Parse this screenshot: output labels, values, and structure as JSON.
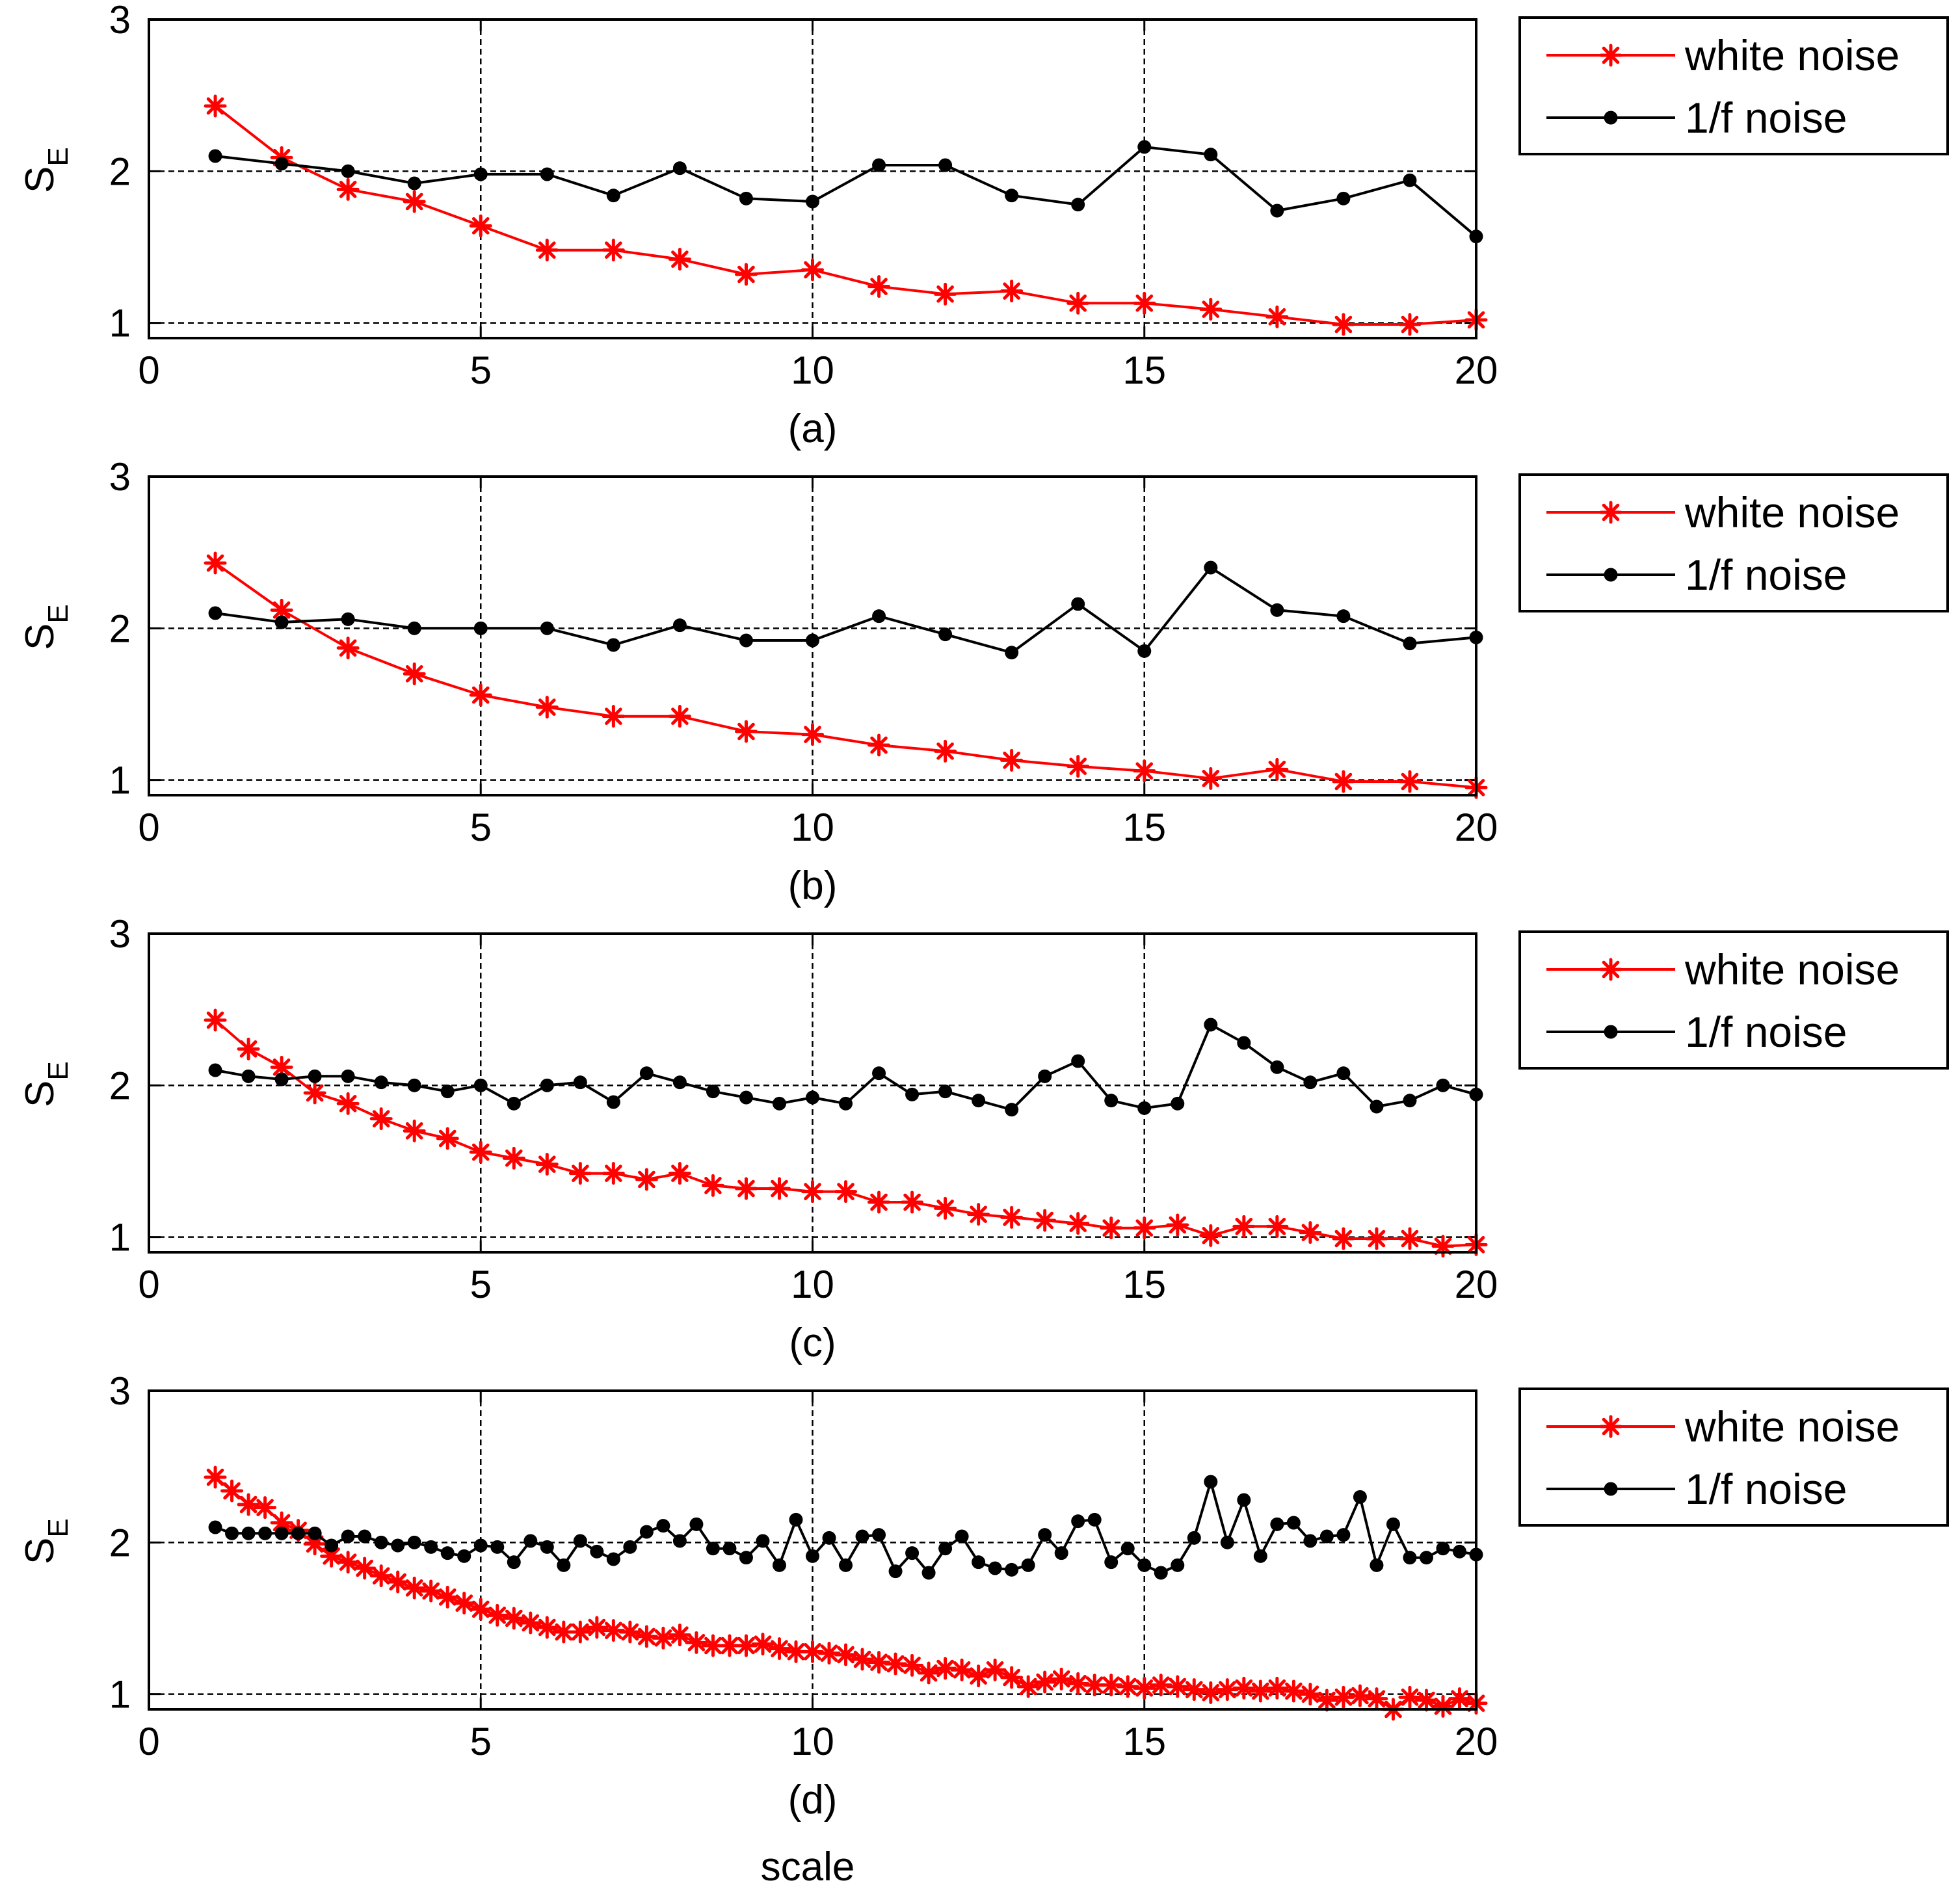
{
  "figure": {
    "xlabel": "scale",
    "ylabel_main": "S",
    "ylabel_sub": "E"
  },
  "chart_data": [
    {
      "type": "line",
      "panel_label": "(a)",
      "xlim": [
        0,
        20
      ],
      "ylim": [
        0.9,
        3
      ],
      "xticks": [
        "0",
        "5",
        "10",
        "15",
        "20"
      ],
      "yticks": [
        "1",
        "2",
        "3"
      ],
      "grid": true,
      "legend_position": "outside-right",
      "series": [
        {
          "name": "white noise",
          "color": "#ff0000",
          "marker": "asterisk",
          "x": [
            1,
            2,
            3,
            4,
            5,
            6,
            7,
            8,
            9,
            10,
            11,
            12,
            13,
            14,
            15,
            16,
            17,
            18,
            19,
            20
          ],
          "y": [
            2.43,
            2.09,
            1.88,
            1.8,
            1.64,
            1.48,
            1.48,
            1.42,
            1.32,
            1.35,
            1.24,
            1.19,
            1.21,
            1.13,
            1.13,
            1.09,
            1.04,
            0.99,
            0.99,
            1.02
          ]
        },
        {
          "name": "1/f noise",
          "color": "#000000",
          "marker": "dot",
          "x": [
            1,
            2,
            3,
            4,
            5,
            6,
            7,
            8,
            9,
            10,
            11,
            12,
            13,
            14,
            15,
            16,
            17,
            18,
            19,
            20
          ],
          "y": [
            2.1,
            2.05,
            2.0,
            1.92,
            1.98,
            1.98,
            1.84,
            2.02,
            1.82,
            1.8,
            2.04,
            2.04,
            1.84,
            1.78,
            2.16,
            2.11,
            1.74,
            1.82,
            1.94,
            1.57
          ]
        }
      ]
    },
    {
      "type": "line",
      "panel_label": "(b)",
      "xlim": [
        0,
        20
      ],
      "ylim": [
        0.9,
        3
      ],
      "xticks": [
        "0",
        "5",
        "10",
        "15",
        "20"
      ],
      "yticks": [
        "1",
        "2",
        "3"
      ],
      "grid": true,
      "legend_position": "outside-right",
      "series": [
        {
          "name": "white noise",
          "color": "#ff0000",
          "marker": "asterisk",
          "x": [
            1,
            2,
            3,
            4,
            5,
            6,
            7,
            8,
            9,
            10,
            11,
            12,
            13,
            14,
            15,
            16,
            17,
            18,
            19,
            20
          ],
          "y": [
            2.43,
            2.12,
            1.87,
            1.7,
            1.56,
            1.48,
            1.42,
            1.42,
            1.32,
            1.3,
            1.23,
            1.19,
            1.13,
            1.09,
            1.06,
            1.01,
            1.07,
            0.99,
            0.99,
            0.95
          ]
        },
        {
          "name": "1/f noise",
          "color": "#000000",
          "marker": "dot",
          "x": [
            1,
            2,
            3,
            4,
            5,
            6,
            7,
            8,
            9,
            10,
            11,
            12,
            13,
            14,
            15,
            16,
            17,
            18,
            19,
            20
          ],
          "y": [
            2.1,
            2.04,
            2.06,
            2.0,
            2.0,
            2.0,
            1.89,
            2.02,
            1.92,
            1.92,
            2.08,
            1.96,
            1.84,
            2.16,
            1.85,
            2.4,
            2.12,
            2.08,
            1.9,
            1.94
          ]
        }
      ]
    },
    {
      "type": "line",
      "panel_label": "(c)",
      "xlim": [
        0,
        20
      ],
      "ylim": [
        0.9,
        3
      ],
      "xticks": [
        "0",
        "5",
        "10",
        "15",
        "20"
      ],
      "yticks": [
        "1",
        "2",
        "3"
      ],
      "grid": true,
      "legend_position": "outside-right",
      "series": [
        {
          "name": "white noise",
          "color": "#ff0000",
          "marker": "asterisk",
          "x": [
            1,
            1.5,
            2,
            2.5,
            3,
            3.5,
            4,
            4.5,
            5,
            5.5,
            6,
            6.5,
            7,
            7.5,
            8,
            8.5,
            9,
            9.5,
            10,
            10.5,
            11,
            11.5,
            12,
            12.5,
            13,
            13.5,
            14,
            14.5,
            15,
            15.5,
            16,
            16.5,
            17,
            17.5,
            18,
            18.5,
            19,
            19.5,
            20
          ],
          "y": [
            2.43,
            2.24,
            2.12,
            1.95,
            1.88,
            1.78,
            1.7,
            1.65,
            1.56,
            1.52,
            1.48,
            1.42,
            1.42,
            1.38,
            1.42,
            1.34,
            1.32,
            1.32,
            1.3,
            1.3,
            1.23,
            1.23,
            1.19,
            1.15,
            1.13,
            1.11,
            1.09,
            1.06,
            1.06,
            1.08,
            1.01,
            1.07,
            1.07,
            1.03,
            0.99,
            0.99,
            0.99,
            0.94,
            0.95
          ]
        },
        {
          "name": "1/f noise",
          "color": "#000000",
          "marker": "dot",
          "x": [
            1,
            1.5,
            2,
            2.5,
            3,
            3.5,
            4,
            4.5,
            5,
            5.5,
            6,
            6.5,
            7,
            7.5,
            8,
            8.5,
            9,
            9.5,
            10,
            10.5,
            11,
            11.5,
            12,
            12.5,
            13,
            13.5,
            14,
            14.5,
            15,
            15.5,
            16,
            16.5,
            17,
            17.5,
            18,
            18.5,
            19,
            19.5,
            20
          ],
          "y": [
            2.1,
            2.06,
            2.04,
            2.06,
            2.06,
            2.02,
            2.0,
            1.96,
            2.0,
            1.88,
            2.0,
            2.02,
            1.89,
            2.08,
            2.02,
            1.96,
            1.92,
            1.88,
            1.92,
            1.88,
            2.08,
            1.94,
            1.96,
            1.9,
            1.84,
            2.06,
            2.16,
            1.9,
            1.85,
            1.88,
            2.4,
            2.28,
            2.12,
            2.02,
            2.08,
            1.86,
            1.9,
            2.0,
            1.94
          ]
        }
      ]
    },
    {
      "type": "line",
      "panel_label": "(d)",
      "xlim": [
        0,
        20
      ],
      "ylim": [
        0.9,
        3
      ],
      "xticks": [
        "0",
        "5",
        "10",
        "15",
        "20"
      ],
      "yticks": [
        "1",
        "2",
        "3"
      ],
      "grid": true,
      "legend_position": "outside-right",
      "series": [
        {
          "name": "white noise",
          "color": "#ff0000",
          "marker": "asterisk",
          "x": [
            1,
            1.25,
            1.5,
            1.75,
            2,
            2.25,
            2.5,
            2.75,
            3,
            3.25,
            3.5,
            3.75,
            4,
            4.25,
            4.5,
            4.75,
            5,
            5.25,
            5.5,
            5.75,
            6,
            6.25,
            6.5,
            6.75,
            7,
            7.25,
            7.5,
            7.75,
            8,
            8.25,
            8.5,
            8.75,
            9,
            9.25,
            9.5,
            9.75,
            10,
            10.25,
            10.5,
            10.75,
            11,
            11.25,
            11.5,
            11.75,
            12,
            12.25,
            12.5,
            12.75,
            13,
            13.25,
            13.5,
            13.75,
            14,
            14.25,
            14.5,
            14.75,
            15,
            15.25,
            15.5,
            15.75,
            16,
            16.25,
            16.5,
            16.75,
            17,
            17.25,
            17.5,
            17.75,
            18,
            18.25,
            18.5,
            18.75,
            19,
            19.25,
            19.5,
            19.75,
            20
          ],
          "y": [
            2.43,
            2.34,
            2.25,
            2.23,
            2.13,
            2.08,
            1.99,
            1.91,
            1.87,
            1.83,
            1.78,
            1.74,
            1.7,
            1.68,
            1.64,
            1.6,
            1.56,
            1.52,
            1.5,
            1.47,
            1.44,
            1.41,
            1.41,
            1.44,
            1.42,
            1.41,
            1.38,
            1.37,
            1.39,
            1.34,
            1.32,
            1.32,
            1.32,
            1.33,
            1.3,
            1.28,
            1.28,
            1.27,
            1.26,
            1.23,
            1.21,
            1.2,
            1.19,
            1.14,
            1.17,
            1.16,
            1.12,
            1.16,
            1.11,
            1.05,
            1.08,
            1.1,
            1.07,
            1.06,
            1.06,
            1.05,
            1.04,
            1.06,
            1.05,
            1.03,
            1.01,
            1.03,
            1.04,
            1.02,
            1.04,
            1.02,
            1.0,
            0.96,
            0.98,
            0.99,
            0.97,
            0.9,
            0.98,
            0.96,
            0.92,
            0.97,
            0.94
          ]
        },
        {
          "name": "1/f noise",
          "color": "#000000",
          "marker": "dot",
          "x": [
            1,
            1.25,
            1.5,
            1.75,
            2,
            2.25,
            2.5,
            2.75,
            3,
            3.25,
            3.5,
            3.75,
            4,
            4.25,
            4.5,
            4.75,
            5,
            5.25,
            5.5,
            5.75,
            6,
            6.25,
            6.5,
            6.75,
            7,
            7.25,
            7.5,
            7.75,
            8,
            8.25,
            8.5,
            8.75,
            9,
            9.25,
            9.5,
            9.75,
            10,
            10.25,
            10.5,
            10.75,
            11,
            11.25,
            11.5,
            11.75,
            12,
            12.25,
            12.5,
            12.75,
            13,
            13.25,
            13.5,
            13.75,
            14,
            14.25,
            14.5,
            14.75,
            15,
            15.25,
            15.5,
            15.75,
            16,
            16.25,
            16.5,
            16.75,
            17,
            17.25,
            17.5,
            17.75,
            18,
            18.25,
            18.5,
            18.75,
            19,
            19.25,
            19.5,
            19.75,
            20
          ],
          "y": [
            2.1,
            2.06,
            2.06,
            2.06,
            2.06,
            2.06,
            2.06,
            1.98,
            2.04,
            2.04,
            2.0,
            1.98,
            2.0,
            1.97,
            1.93,
            1.91,
            1.98,
            1.97,
            1.87,
            2.01,
            1.97,
            1.85,
            2.01,
            1.94,
            1.89,
            1.97,
            2.07,
            2.11,
            2.01,
            2.12,
            1.96,
            1.96,
            1.9,
            2.01,
            1.85,
            2.15,
            1.91,
            2.03,
            1.85,
            2.04,
            2.05,
            1.81,
            1.93,
            1.8,
            1.96,
            2.04,
            1.87,
            1.83,
            1.82,
            1.85,
            2.05,
            1.93,
            2.14,
            2.15,
            1.87,
            1.96,
            1.85,
            1.8,
            1.85,
            2.03,
            2.4,
            2.0,
            2.28,
            1.91,
            2.12,
            2.13,
            2.01,
            2.04,
            2.05,
            2.3,
            1.85,
            2.12,
            1.9,
            1.9,
            1.96,
            1.94,
            1.92
          ]
        }
      ]
    }
  ]
}
